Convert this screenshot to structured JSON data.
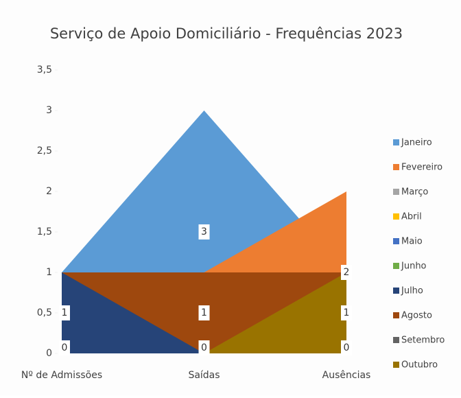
{
  "chart_data": {
    "type": "area",
    "title": "Serviço de Apoio Domiciliário - Frequências 2023",
    "categories": [
      "Nº de Admissões",
      "Saídas",
      "Ausências"
    ],
    "series": [
      {
        "name": "Janeiro",
        "color": "#5b9bd5",
        "values": [
          1,
          3,
          1
        ]
      },
      {
        "name": "Fevereiro",
        "color": "#ed7d31",
        "values": [
          1,
          1,
          2
        ]
      },
      {
        "name": "Março",
        "color": "#a5a5a5",
        "values": [
          0,
          0,
          0
        ]
      },
      {
        "name": "Abril",
        "color": "#ffc000",
        "values": [
          0,
          0,
          0
        ]
      },
      {
        "name": "Maio",
        "color": "#4472c4",
        "values": [
          0,
          0,
          0
        ]
      },
      {
        "name": "Junho",
        "color": "#70ad47",
        "values": [
          0,
          0,
          0
        ]
      },
      {
        "name": "Julho",
        "color": "#264478",
        "values": [
          1,
          0,
          0
        ]
      },
      {
        "name": "Agosto",
        "color": "#9e480e",
        "values": [
          1,
          1,
          1
        ]
      },
      {
        "name": "Setembro",
        "color": "#636363",
        "values": [
          0,
          0,
          0
        ]
      },
      {
        "name": "Outubro",
        "color": "#997300",
        "values": [
          0,
          0,
          1
        ]
      }
    ],
    "ylim": [
      0,
      3.5
    ],
    "yticks": [
      0,
      {
        "value": 0.5,
        "label": "0,5"
      },
      1,
      {
        "value": 1.5,
        "label": "1,5"
      },
      2,
      {
        "value": 2.5,
        "label": "2,5"
      },
      3,
      {
        "value": 3.5,
        "label": "3,5"
      }
    ],
    "legend": "right"
  }
}
